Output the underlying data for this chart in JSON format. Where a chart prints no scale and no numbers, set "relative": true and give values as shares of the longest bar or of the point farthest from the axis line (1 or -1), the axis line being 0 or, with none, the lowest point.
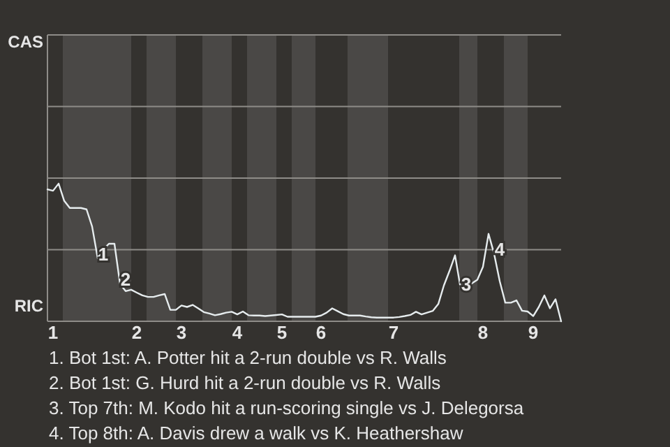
{
  "chart_data": {
    "type": "line",
    "relative": true,
    "categories": [
      null,
      "1",
      null,
      null,
      null,
      null,
      null,
      null,
      null,
      null,
      null,
      null,
      null,
      null,
      null,
      null,
      "2",
      null,
      null,
      null,
      null,
      null,
      null,
      null,
      "3",
      null,
      null,
      null,
      null,
      null,
      null,
      null,
      null,
      null,
      "4",
      null,
      null,
      null,
      null,
      null,
      null,
      null,
      "5",
      null,
      null,
      null,
      null,
      null,
      null,
      "6",
      null,
      null,
      null,
      null,
      null,
      null,
      null,
      null,
      null,
      null,
      null,
      null,
      "7",
      null,
      null,
      null,
      null,
      null,
      null,
      null,
      null,
      null,
      null,
      null,
      null,
      null,
      null,
      null,
      "8",
      null,
      null,
      null,
      null,
      null,
      null,
      null,
      null,
      "9",
      null,
      null,
      null,
      null,
      null
    ],
    "marker": "none",
    "line_style": "solid",
    "ref_lines": [
      {
        "axis": "y",
        "value": 0.52,
        "color": "#8e8c88"
      },
      {
        "axis": "y",
        "value": 1.04,
        "color": "#8e8c88"
      },
      {
        "axis": "y",
        "value": 1.56,
        "color": "#8e8c88"
      }
    ],
    "series": [
      {
        "color": "#e6ecee",
        "values": [
          0.958,
          0.948,
          1,
          0.875,
          0.823,
          0.823,
          0.823,
          0.813,
          0.688,
          0.458,
          0.521,
          0.563,
          0.563,
          0.271,
          0.219,
          0.229,
          0.208,
          0.188,
          0.177,
          0.177,
          0.188,
          0.198,
          0.083,
          0.083,
          0.115,
          0.104,
          0.119,
          0.094,
          0.067,
          0.056,
          0.044,
          0.052,
          0.063,
          0.069,
          0.05,
          0.071,
          0.044,
          0.042,
          0.042,
          0.038,
          0.042,
          0.046,
          0.05,
          0.033,
          0.033,
          0.033,
          0.033,
          0.033,
          0.033,
          0.042,
          0.063,
          0.094,
          0.073,
          0.052,
          0.042,
          0.042,
          0.042,
          0.035,
          0.029,
          0.027,
          0.027,
          0.027,
          0.027,
          0.031,
          0.038,
          0.046,
          0.069,
          0.05,
          0.063,
          0.075,
          0.125,
          0.26,
          0.365,
          0.479,
          0.24,
          0.254,
          0.275,
          0.302,
          0.396,
          0.635,
          0.49,
          0.292,
          0.135,
          0.135,
          0.152,
          0.077,
          0.071,
          0.038,
          0.104,
          0.188,
          0.094,
          0.16,
          0
        ]
      }
    ],
    "annotations": [
      "CAS",
      "RIC",
      {
        "text": "1",
        "y": 0.458
      },
      {
        "text": "2",
        "y": 0.271
      },
      {
        "text": "3",
        "y": 0.24
      },
      {
        "text": "4",
        "y": 0.49
      },
      "1. Bot 1st: A. Potter hit a 2-run double vs R. Walls",
      "2. Bot 1st: G. Hurd hit a 2-run double vs R. Walls",
      "3. Top 7th: M. Kodo hit a run-scoring single vs J. Delegorsa",
      "4. Top 8th: A. Davis drew a walk vs K. Heathershaw"
    ]
  }
}
